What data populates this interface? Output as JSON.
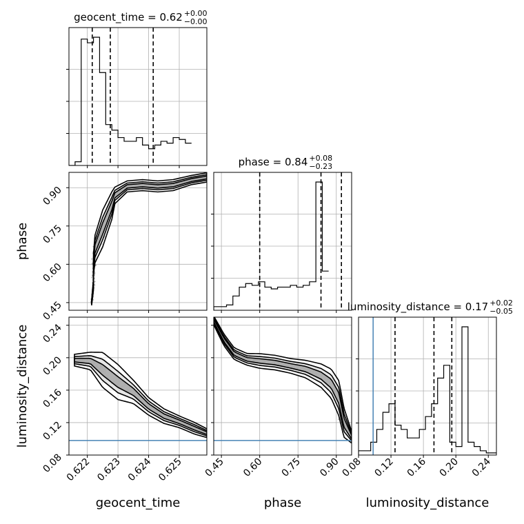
{
  "colors": {
    "truth": "#4682b4",
    "line": "#000000",
    "grid": "#b0b0b0",
    "scatter": "#555555"
  },
  "chart_data": {
    "type": "corner",
    "parameters": [
      "geocent_time",
      "phase",
      "luminosity_distance"
    ],
    "xlabels": [
      "geocent_time",
      "phase",
      "luminosity_distance"
    ],
    "ylabels": [
      "",
      "phase",
      "luminosity_distance"
    ],
    "titles": [
      {
        "parameter": "geocent_time",
        "text": "geocent_time = 0.62",
        "plus": "+0.00",
        "minus": "−0.00"
      },
      {
        "parameter": "phase",
        "text": "phase = 0.84",
        "plus": "+0.08",
        "minus": "−0.23"
      },
      {
        "parameter": "luminosity_distance",
        "text": "luminosity_distance = 0.17",
        "plus": "+0.02",
        "minus": "−0.05"
      }
    ],
    "ranges": {
      "geocent_time": [
        0.6214,
        0.6259
      ],
      "phase": [
        0.42,
        0.96
      ],
      "luminosity_distance": [
        0.08,
        0.25
      ]
    },
    "ticks": {
      "geocent_time": {
        "values": [
          0.622,
          0.623,
          0.624,
          0.625
        ],
        "labels": [
          "0.622",
          "0.623",
          "0.624",
          "0.625"
        ]
      },
      "phase": {
        "values": [
          0.45,
          0.6,
          0.75,
          0.9
        ],
        "labels": [
          "0.45",
          "0.60",
          "0.75",
          "0.90"
        ]
      },
      "luminosity_distance": {
        "values": [
          0.08,
          0.12,
          0.16,
          0.2,
          0.24
        ],
        "labels": [
          "0.08",
          "0.12",
          "0.16",
          "0.20",
          "0.24"
        ]
      }
    },
    "quantiles": {
      "geocent_time": [
        0.62216,
        0.62275,
        0.62415
      ],
      "phase": [
        0.6,
        0.84,
        0.92
      ],
      "luminosity_distance": [
        0.125,
        0.173,
        0.195
      ]
    },
    "truths": {
      "luminosity_distance": 0.098
    },
    "histograms": {
      "geocent_time": {
        "edges_start": 0.6214,
        "bin_width": 0.0002,
        "counts": [
          0,
          2,
          68,
          66,
          69,
          50,
          22,
          19,
          15,
          13,
          13,
          15,
          11,
          9,
          11,
          13,
          12,
          15,
          14,
          12
        ]
      },
      "phase": {
        "edges_start": 0.42,
        "bin_width": 0.025,
        "counts": [
          2,
          2,
          3,
          8,
          13,
          15,
          14,
          16,
          13,
          12,
          13,
          13,
          14,
          13,
          14,
          16,
          72,
          22
        ]
      },
      "luminosity_distance": {
        "edges_start": 0.08,
        "bin_width": 0.0075,
        "counts": [
          1,
          1,
          3,
          6,
          10,
          12,
          7,
          6,
          4,
          4,
          6,
          9,
          12,
          18,
          21,
          3,
          2,
          30,
          3,
          2,
          1,
          0.5,
          0.5
        ]
      }
    },
    "pairs": [
      {
        "x": "geocent_time",
        "y": "phase",
        "ridge": [
          [
            0.62214,
            0.45
          ],
          [
            0.6222,
            0.52
          ],
          [
            0.6222,
            0.6
          ],
          [
            0.62225,
            0.66
          ],
          [
            0.6225,
            0.74
          ],
          [
            0.6228,
            0.83
          ],
          [
            0.6229,
            0.87
          ],
          [
            0.6233,
            0.905
          ],
          [
            0.6238,
            0.91
          ],
          [
            0.6243,
            0.905
          ],
          [
            0.6248,
            0.91
          ],
          [
            0.6254,
            0.93
          ],
          [
            0.6259,
            0.94
          ]
        ],
        "spread": [
          0.006,
          0.012,
          0.022,
          0.03,
          0.04,
          0.03,
          0.018,
          0.012,
          0.012,
          0.012,
          0.012,
          0.01,
          0.01
        ]
      },
      {
        "x": "geocent_time",
        "y": "luminosity_distance",
        "ridge": [
          [
            0.62158,
            0.197
          ],
          [
            0.6221,
            0.196
          ],
          [
            0.6225,
            0.185
          ],
          [
            0.623,
            0.17
          ],
          [
            0.6235,
            0.158
          ],
          [
            0.624,
            0.14
          ],
          [
            0.6245,
            0.128
          ],
          [
            0.625,
            0.121
          ],
          [
            0.6255,
            0.113
          ],
          [
            0.6259,
            0.107
          ]
        ],
        "spread": [
          0.004,
          0.006,
          0.012,
          0.012,
          0.008,
          0.006,
          0.005,
          0.004,
          0.004,
          0.003
        ]
      },
      {
        "x": "phase",
        "y": "luminosity_distance",
        "ridge": [
          [
            0.42,
            0.246
          ],
          [
            0.46,
            0.222
          ],
          [
            0.5,
            0.205
          ],
          [
            0.55,
            0.198
          ],
          [
            0.6,
            0.196
          ],
          [
            0.66,
            0.194
          ],
          [
            0.72,
            0.19
          ],
          [
            0.78,
            0.186
          ],
          [
            0.84,
            0.178
          ],
          [
            0.88,
            0.168
          ],
          [
            0.91,
            0.15
          ],
          [
            0.93,
            0.12
          ],
          [
            0.95,
            0.108
          ],
          [
            0.96,
            0.102
          ]
        ],
        "spread": [
          0.003,
          0.004,
          0.004,
          0.004,
          0.005,
          0.005,
          0.005,
          0.006,
          0.008,
          0.01,
          0.012,
          0.01,
          0.006,
          0.004
        ]
      }
    ]
  }
}
